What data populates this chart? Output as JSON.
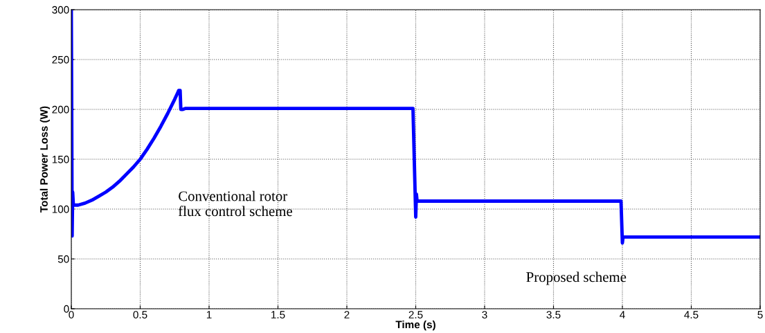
{
  "chart_data": {
    "type": "line",
    "xlabel": "Time (s)",
    "ylabel": "Total Power Loss (W)",
    "x": [
      0,
      0.003,
      0.006,
      0.01,
      0.015,
      0.05,
      0.1,
      0.15,
      0.2,
      0.25,
      0.3,
      0.35,
      0.4,
      0.45,
      0.5,
      0.55,
      0.6,
      0.65,
      0.7,
      0.75,
      0.78,
      0.79,
      0.795,
      0.81,
      0.83,
      1.5,
      2.48,
      2.5,
      2.505,
      2.51,
      2.52,
      3.0,
      3.99,
      4.0,
      4.005,
      4.02,
      5.0
    ],
    "series": [
      {
        "color": "#0000ff",
        "values": [
          300,
          200,
          73,
          117,
          104,
          104,
          106,
          109,
          113,
          117,
          122,
          128,
          135,
          142,
          150,
          160,
          171,
          183,
          196,
          210,
          219,
          219,
          200,
          200,
          201,
          201,
          201,
          92,
          115,
          108,
          108,
          108,
          108,
          66,
          72,
          72,
          72
        ]
      }
    ],
    "xlim": [
      0,
      5
    ],
    "ylim": [
      0,
      300
    ],
    "xticks": [
      0,
      0.5,
      1,
      1.5,
      2,
      2.5,
      3,
      3.5,
      4,
      4.5,
      5
    ],
    "yticks": [
      0,
      50,
      100,
      150,
      200,
      250,
      300
    ],
    "grid": true,
    "line_style": "solid",
    "annotations": [
      "Conventional rotor\nflux control scheme",
      "Proposed scheme"
    ]
  }
}
